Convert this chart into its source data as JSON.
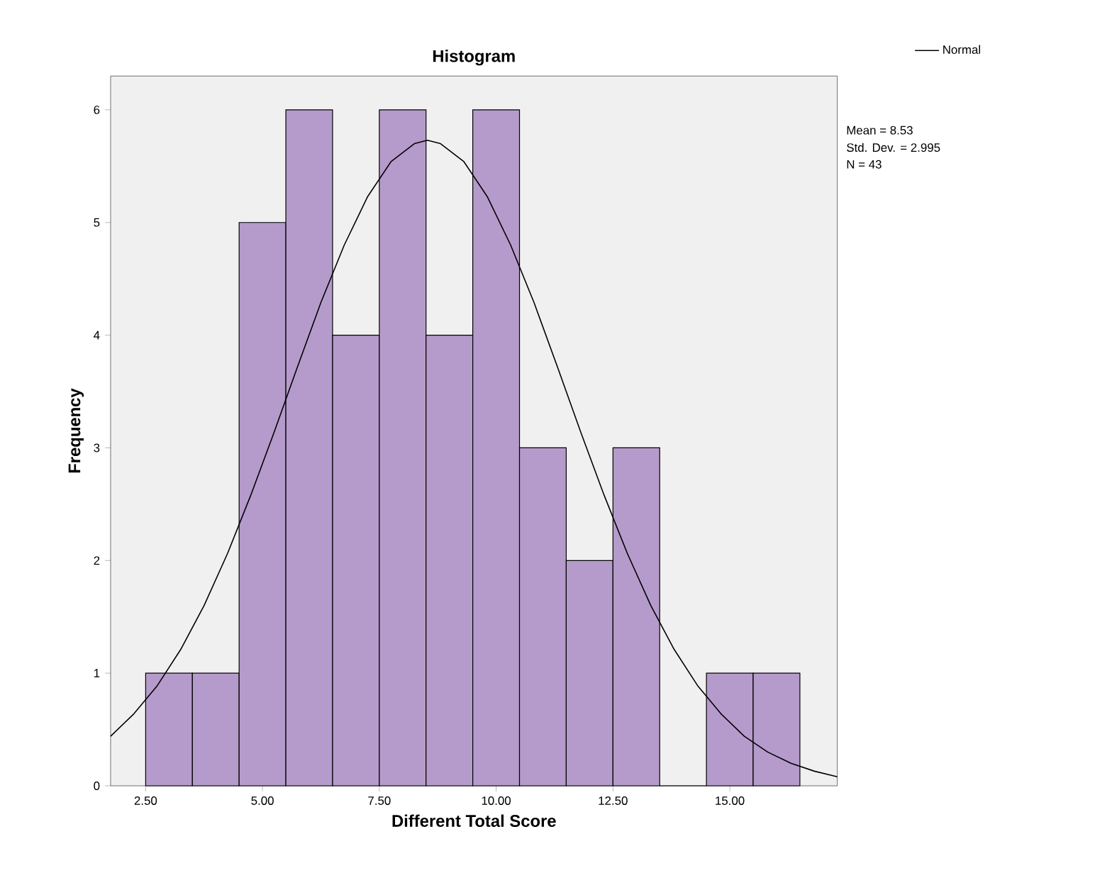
{
  "chart_data": {
    "type": "histogram",
    "title": "Histogram",
    "xlabel": "Different Total Score",
    "ylabel": "Frequency",
    "series": [
      {
        "color": "#b59bcb",
        "bins": [
          2.5,
          3.5,
          4.5,
          5.5,
          6.5,
          7.5,
          8.5,
          9.5,
          10.5,
          11.5,
          12.5,
          13.5,
          14.5,
          15.5,
          16.5
        ],
        "values": [
          1,
          1,
          5,
          6,
          4,
          6,
          4,
          6,
          3,
          2,
          3,
          0,
          1,
          1
        ]
      },
      {
        "type": "line",
        "name": "Normal",
        "color": "#000000",
        "x": [
          1.75,
          2.25,
          2.75,
          3.25,
          3.75,
          4.25,
          4.75,
          5.25,
          5.75,
          6.25,
          6.75,
          7.25,
          7.75,
          8.25,
          8.53,
          8.81,
          9.31,
          9.81,
          10.31,
          10.81,
          11.31,
          11.81,
          12.31,
          12.81,
          13.31,
          13.81,
          14.31,
          14.81,
          15.31,
          15.81,
          16.31,
          16.81,
          17.3
        ],
        "values": [
          0.44,
          0.64,
          0.89,
          1.21,
          1.6,
          2.06,
          2.58,
          3.14,
          3.72,
          4.29,
          4.8,
          5.23,
          5.54,
          5.7,
          5.73,
          5.7,
          5.54,
          5.23,
          4.8,
          4.29,
          3.72,
          3.14,
          2.58,
          2.06,
          1.6,
          1.21,
          0.89,
          0.64,
          0.44,
          0.3,
          0.2,
          0.13,
          0.08
        ]
      }
    ],
    "xlim": [
      1.75,
      17.3
    ],
    "ylim": [
      0,
      6.3
    ],
    "xticks": [
      {
        "value": 2.5,
        "label": "2.50"
      },
      {
        "value": 5,
        "label": "5.00"
      },
      {
        "value": 7.5,
        "label": "7.50"
      },
      {
        "value": 10,
        "label": "10.00"
      },
      {
        "value": 12.5,
        "label": "12.50"
      },
      {
        "value": 15,
        "label": "15.00"
      }
    ],
    "yticks": [
      0,
      1,
      2,
      3,
      4,
      5,
      6
    ],
    "legend": "top right",
    "grid": false,
    "annotations": [
      "Mean = 8.53",
      "Std. Dev. = 2.995",
      "N = 43"
    ]
  }
}
